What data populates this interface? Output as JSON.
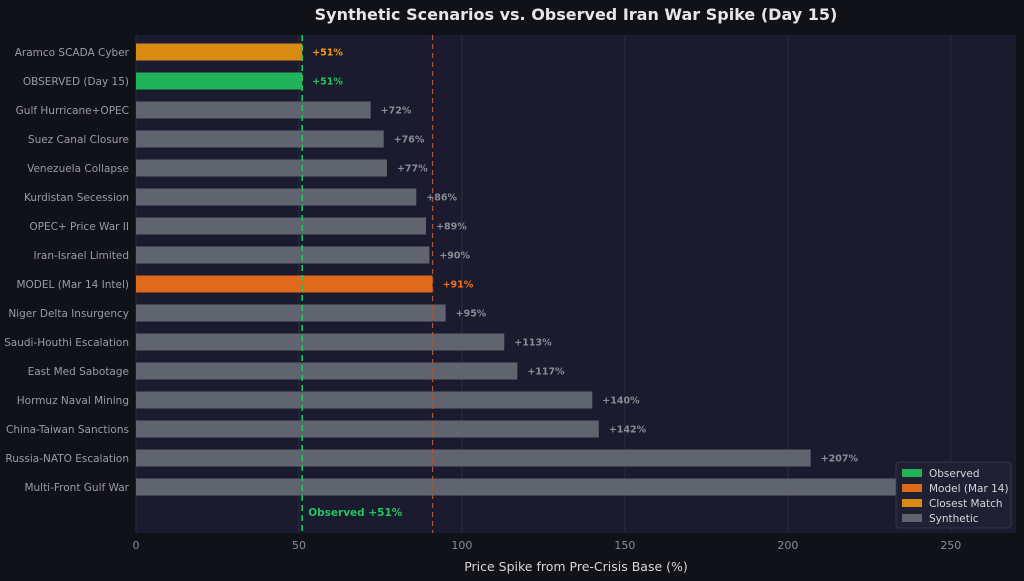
{
  "chart_data": {
    "type": "bar",
    "orientation": "horizontal",
    "title": "Synthetic Scenarios vs. Observed Iran War Spike (Day 15)",
    "xlabel": "Price Spike from Pre-Crisis Base (%)",
    "xlim": [
      0,
      270
    ],
    "xticks": [
      0,
      50,
      100,
      150,
      200,
      250
    ],
    "grid": "x",
    "legend_position": "bottom-right",
    "colors": {
      "observed": "#22b35a",
      "model": "#e06a1b",
      "closest": "#d98a12",
      "synthetic": "#60646f",
      "background": "#1a1b2e",
      "observed_line": "#22c55e",
      "model_line": "#b0552a"
    },
    "categories": [
      "Aramco SCADA Cyber",
      "OBSERVED (Day 15)",
      "Gulf Hurricane+OPEC",
      "Suez Canal Closure",
      "Venezuela Collapse",
      "Kurdistan Secession",
      "OPEC+ Price War II",
      "Iran-Israel Limited",
      "MODEL (Mar 14 Intel)",
      "Niger Delta Insurgency",
      "Saudi-Houthi Escalation",
      "East Med Sabotage",
      "Hormuz Naval Mining",
      "China-Taiwan Sanctions",
      "Russia-NATO Escalation",
      "Multi-Front Gulf War"
    ],
    "values": [
      51,
      51,
      72,
      76,
      77,
      86,
      89,
      90,
      91,
      95,
      113,
      117,
      140,
      142,
      207,
      243
    ],
    "kinds": [
      "closest",
      "observed",
      "synthetic",
      "synthetic",
      "synthetic",
      "synthetic",
      "synthetic",
      "synthetic",
      "model",
      "synthetic",
      "synthetic",
      "synthetic",
      "synthetic",
      "synthetic",
      "synthetic",
      "synthetic"
    ],
    "value_labels": [
      "+51%",
      "+51%",
      "+72%",
      "+76%",
      "+77%",
      "+86%",
      "+89%",
      "+90%",
      "+91%",
      "+95%",
      "+113%",
      "+117%",
      "+140%",
      "+142%",
      "+207%",
      ""
    ],
    "reference_lines": [
      {
        "name": "observed",
        "value": 51
      },
      {
        "name": "model",
        "value": 91
      }
    ],
    "annotation": "Observed +51%",
    "legend": [
      {
        "label": "Observed",
        "kind": "observed"
      },
      {
        "label": "Model (Mar 14)",
        "kind": "model"
      },
      {
        "label": "Closest Match",
        "kind": "closest"
      },
      {
        "label": "Synthetic",
        "kind": "synthetic"
      }
    ]
  }
}
